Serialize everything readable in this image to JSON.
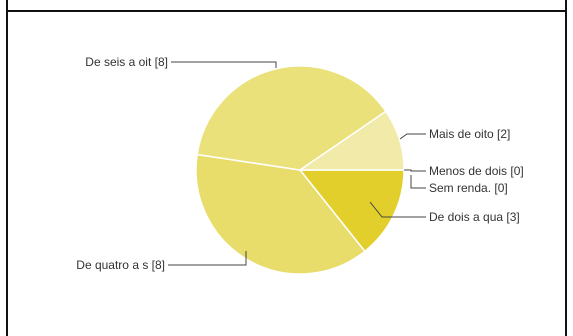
{
  "chart_data": {
    "type": "pie",
    "slices": [
      {
        "label": "De dois a qua [3]",
        "value": 3,
        "color": "#e3cf2b"
      },
      {
        "label": "De quatro a s [8]",
        "value": 8,
        "color": "#e8dc6a"
      },
      {
        "label": "De seis a oit [8]",
        "value": 8,
        "color": "#ebe17b"
      },
      {
        "label": "Mais de oito  [2]",
        "value": 2,
        "color": "#f1eaa8"
      },
      {
        "label": "Menos de dois [0]",
        "value": 0,
        "color": "#e3cf2b"
      },
      {
        "label": "Sem renda. [0]",
        "value": 0,
        "color": "#e3cf2b"
      }
    ]
  }
}
